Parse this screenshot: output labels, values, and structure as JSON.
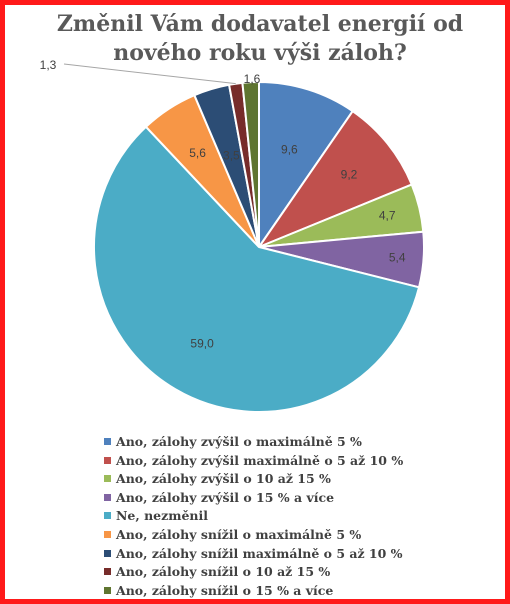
{
  "chart_data": {
    "type": "pie",
    "title": "Změnil Vám dodavatel energií od nového roku výši záloh?",
    "categories": [
      "Ano, zálohy zvýšil o maximálně 5 %",
      "Ano, zálohy zvýšil maximálně o 5 až 10 %",
      "Ano, zálohy zvýšil o 10 až 15 %",
      "Ano, zálohy zvýšil o 15 % a více",
      "Ne, nezměnil",
      "Ano, zálohy snížil o maximálně 5 %",
      "Ano, zálohy snížil maximálně o 5 až 10 %",
      "Ano, zálohy snížil o 10 až 15 %",
      "Ano, zálohy snížil o 15 % a více"
    ],
    "values": [
      9.6,
      9.2,
      4.7,
      5.4,
      59.0,
      5.6,
      3.5,
      1.3,
      1.6
    ],
    "labels": [
      "9,6",
      "9,2",
      "4,7",
      "5,4",
      "59,0",
      "5,6",
      "3,5",
      "1,3",
      "1,6"
    ],
    "colors": [
      "#4f81bd",
      "#c0504d",
      "#9bbb59",
      "#8064a2",
      "#4bacc6",
      "#f79646",
      "#2c4d75",
      "#772c2a",
      "#5f7530"
    ],
    "legend_position": "bottom"
  }
}
